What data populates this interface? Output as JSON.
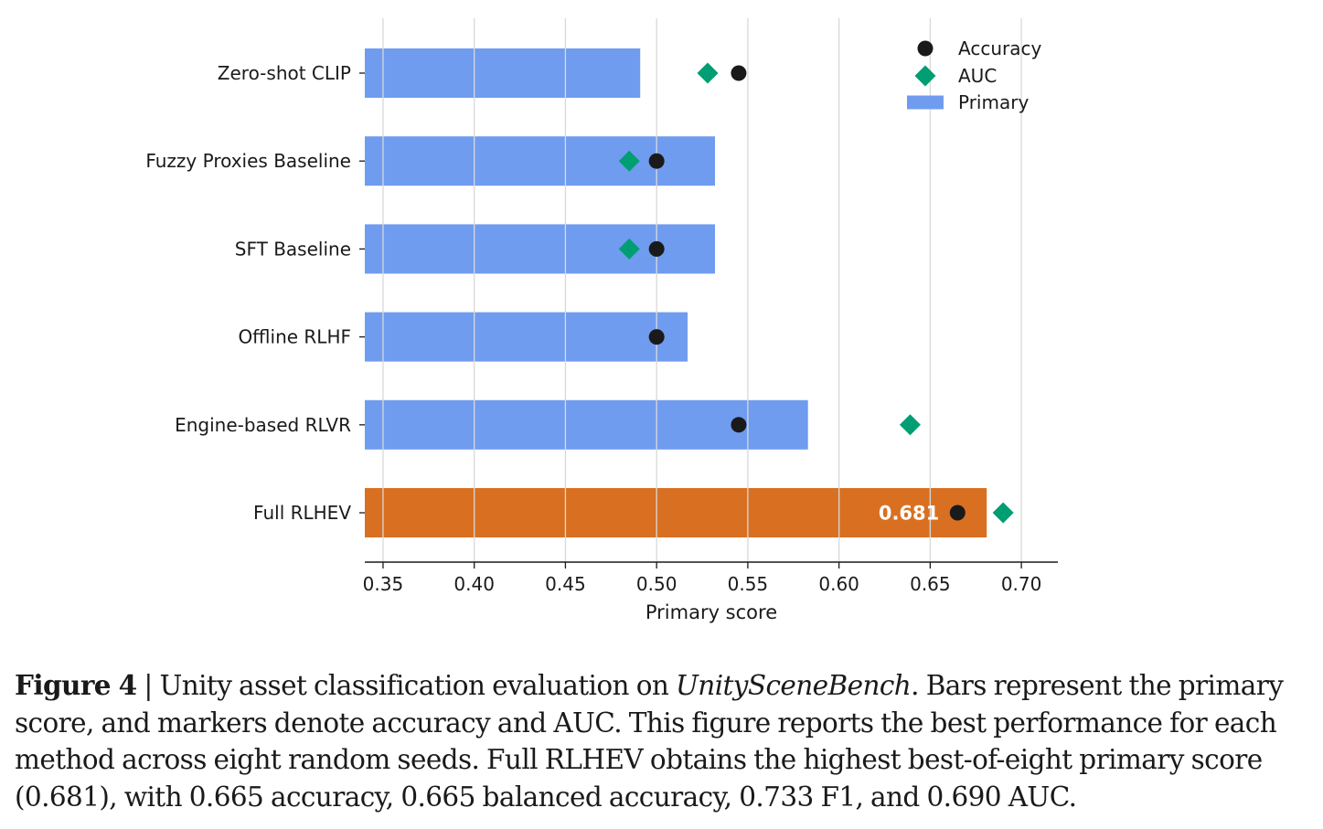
{
  "chart_data": {
    "type": "bar",
    "orientation": "horizontal",
    "categories": [
      "Zero-shot CLIP",
      "Fuzzy Proxies Baseline",
      "SFT Baseline",
      "Offline RLHF",
      "Engine-based RLVR",
      "Full RLHEV"
    ],
    "series": [
      {
        "name": "Primary",
        "kind": "bar",
        "values": [
          0.491,
          0.532,
          0.532,
          0.517,
          0.583,
          0.681
        ]
      },
      {
        "name": "Accuracy",
        "kind": "marker-circle",
        "values": [
          0.545,
          0.5,
          0.5,
          0.5,
          0.545,
          0.665
        ]
      },
      {
        "name": "AUC",
        "kind": "marker-diamond",
        "values": [
          0.528,
          0.485,
          0.485,
          null,
          0.639,
          0.69
        ]
      }
    ],
    "highlight_index": 5,
    "highlight_label": "0.681",
    "xlabel": "Primary score",
    "xlim": [
      0.34,
      0.72
    ],
    "xticks": [
      0.35,
      0.4,
      0.45,
      0.5,
      0.55,
      0.6,
      0.65,
      0.7
    ],
    "xtick_labels": [
      "0.35",
      "0.40",
      "0.45",
      "0.50",
      "0.55",
      "0.60",
      "0.65",
      "0.70"
    ],
    "grid": "vertical",
    "legend": {
      "position": "top-right",
      "entries": [
        "Accuracy",
        "AUC",
        "Primary"
      ]
    },
    "colors": {
      "bar": "#6f9cef",
      "highlight": "#d97021",
      "accuracy": "#1a1a1a",
      "auc": "#029e73",
      "grid": "#d9d9d9",
      "label": "#ffffff"
    }
  },
  "caption": {
    "prefix": "Figure 4",
    "separator": " | Unity asset classification evaluation on ",
    "benchmark": "UnitySceneBench",
    "body": ". Bars represent the primary score, and markers denote accuracy and AUC. This figure reports the best performance for each method across eight random seeds. Full RLHEV obtains the highest best-of-eight primary score (0.681), with 0.665 accuracy, 0.665 balanced accuracy, 0.733 F1, and 0.690 AUC."
  }
}
